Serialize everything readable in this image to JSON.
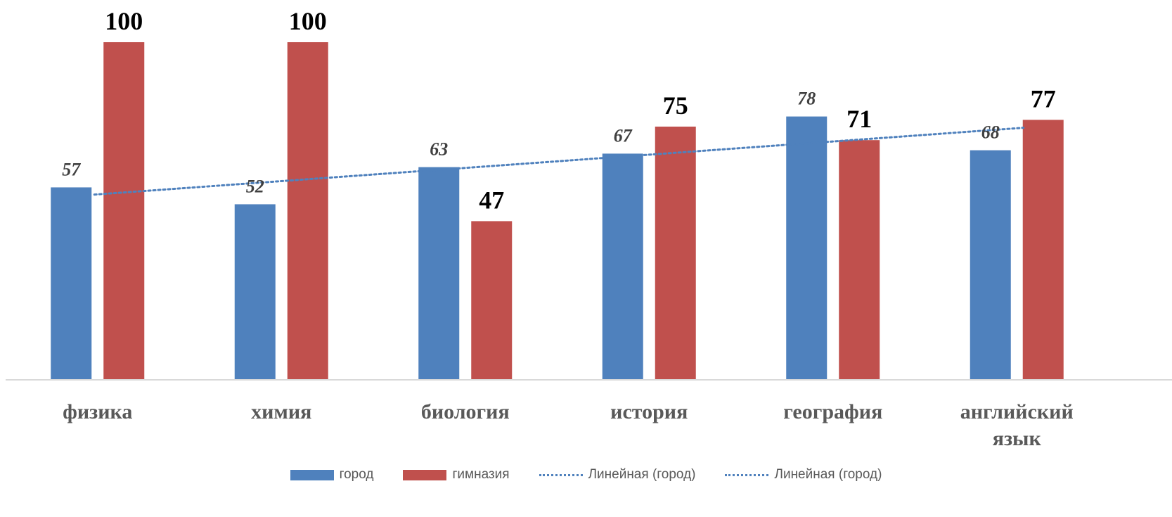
{
  "chart_data": {
    "type": "bar",
    "categories": [
      "физика",
      "химия",
      "биология",
      "история",
      "география",
      [
        "английский",
        "язык"
      ]
    ],
    "series": [
      {
        "name": "город",
        "values": [
          57,
          52,
          63,
          67,
          78,
          68
        ],
        "color": "#4f81bd"
      },
      {
        "name": "гимназия",
        "values": [
          100,
          100,
          47,
          75,
          71,
          77
        ],
        "color": "#c0504d"
      }
    ],
    "trendline": {
      "name": "Линейная (город)",
      "of_series": "город",
      "style": "dotted",
      "color": "#4f81bd"
    },
    "ylim": [
      0,
      100
    ],
    "grid": false,
    "legend_position": "bottom",
    "legend": [
      "город",
      "гимназия",
      "Линейная (город)",
      "Линейная (город)"
    ]
  }
}
